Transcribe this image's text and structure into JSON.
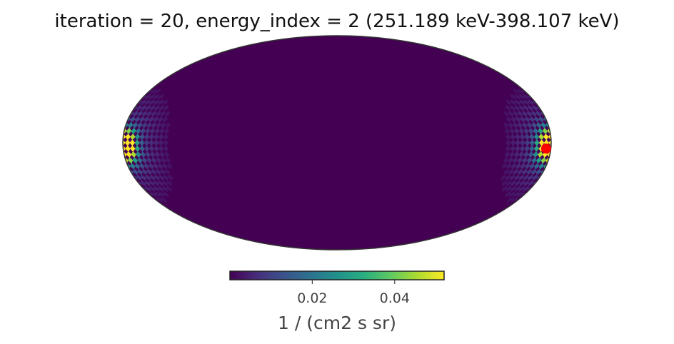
{
  "chart_data": {
    "type": "heatmap",
    "projection": "mollweide",
    "title": "iteration = 20, energy_index = 2 (251.189 keV-398.107 keV)",
    "colormap": "viridis",
    "colors": {
      "background": "#440154",
      "outline": "#333333",
      "marker": "#ff0000"
    },
    "colorbar": {
      "label": "1 / (cm2 s sr)",
      "range": [
        0.0,
        0.052
      ],
      "ticks": [
        0.02,
        0.04
      ],
      "tick_labels": [
        "0.02",
        "0.04"
      ],
      "orientation": "horizontal",
      "placement": "bottom"
    },
    "hotspots": [
      {
        "lon_deg": 180,
        "lat_deg": 0,
        "peak": 0.048,
        "sigma_deg": 7
      },
      {
        "lon_deg": -180,
        "lat_deg": -4,
        "peak": 0.05,
        "sigma_deg": 7
      }
    ],
    "marker": {
      "lon_deg": -176,
      "lat_deg": -4,
      "color": "#ff0000"
    }
  }
}
